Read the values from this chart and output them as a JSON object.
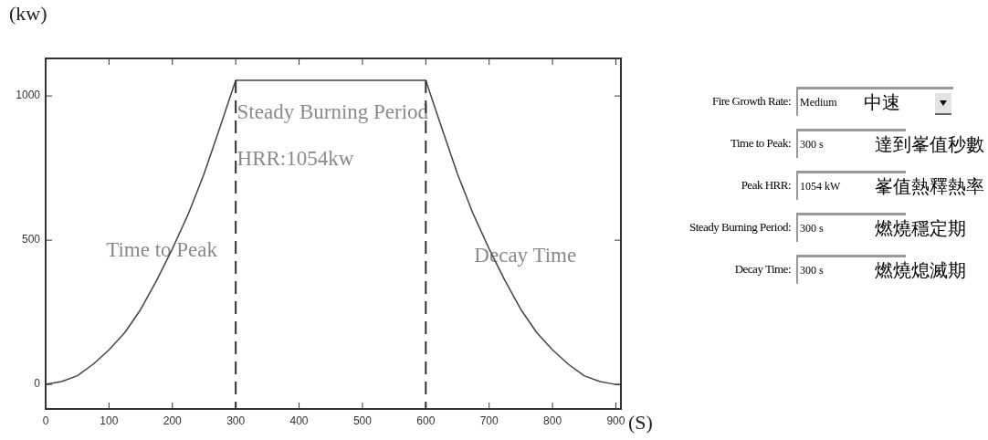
{
  "chart_data": [
    {
      "type": "line",
      "xlabel": "(S)",
      "ylabel": "(kw)",
      "x": [
        0,
        25,
        50,
        75,
        100,
        125,
        150,
        175,
        200,
        225,
        250,
        275,
        300,
        600,
        625,
        650,
        675,
        700,
        725,
        750,
        775,
        800,
        825,
        850,
        875,
        900,
        908
      ],
      "series": [
        {
          "color": "#444444",
          "values": [
            0,
            10,
            30,
            70,
            120,
            180,
            260,
            360,
            470,
            590,
            730,
            890,
            1054,
            1054,
            890,
            730,
            590,
            470,
            360,
            260,
            180,
            120,
            70,
            30,
            10,
            0,
            0
          ]
        }
      ],
      "xlim": [
        0,
        908
      ],
      "xticks": [
        0,
        100,
        200,
        300,
        400,
        500,
        600,
        700,
        800,
        900
      ],
      "ylim": [
        -85,
        1130
      ],
      "yticks": [
        0,
        500,
        1000
      ],
      "ref_lines": [
        {
          "axis": "x",
          "value": 300,
          "color": "#333333",
          "line_style": "dashed"
        },
        {
          "axis": "x",
          "value": 600,
          "color": "#333333",
          "line_style": "dashed"
        }
      ],
      "annotations": [
        "Time to Peak",
        {
          "text": "Steady Burning Period",
          "x": 302,
          "y": 940
        },
        {
          "text": "HRR:1054kw",
          "x": 302,
          "y": 780
        },
        "Decay Time"
      ],
      "marker": "none",
      "line_style": "solid",
      "legend": false,
      "grid": false
    },
    {
      "type": "other",
      "annotations": [
        "Fire Growth Rate:",
        "Medium",
        "中速",
        "Time to Peak:",
        "300 s",
        "達到峯值秒數",
        "Peak HRR:",
        "1054 kW",
        "峯值熱釋熱率",
        "Steady Burning Period:",
        "300 s",
        "燃燒穩定期",
        "Decay Time:",
        "300 s",
        "燃燒熄滅期"
      ]
    }
  ]
}
